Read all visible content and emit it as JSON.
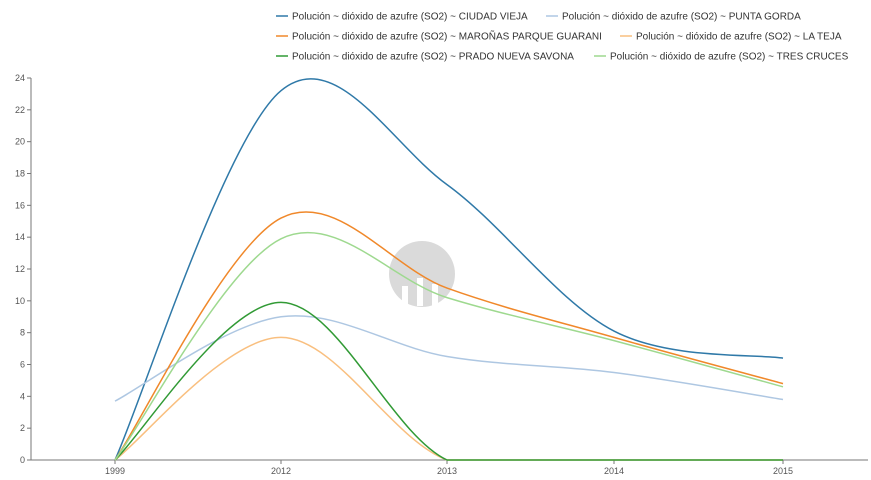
{
  "chart_data": {
    "type": "line",
    "title": "",
    "xlabel": "",
    "ylabel": "",
    "categories": [
      "1999",
      "2012",
      "2013",
      "2014",
      "2015"
    ],
    "ylim": [
      0,
      24
    ],
    "yticks": [
      0,
      2,
      4,
      6,
      8,
      10,
      12,
      14,
      16,
      18,
      20,
      22,
      24
    ],
    "grid": false,
    "legend_position": "top",
    "watermark": "logo",
    "series": [
      {
        "name": "Polución ~ dióxido de azufre (SO2) ~ CIUDAD VIEJA",
        "color": "#2f79a8",
        "x": [
          "1999",
          "2012",
          "2013",
          "2014",
          "2015"
        ],
        "values": [
          0,
          23.2,
          17.3,
          8.1,
          6.4
        ]
      },
      {
        "name": "Polución ~ dióxido de azufre (SO2) ~ PUNTA GORDA",
        "color": "#aec7e2",
        "x": [
          "1999",
          "2012",
          "2013",
          "2014",
          "2015"
        ],
        "values": [
          3.7,
          9.0,
          6.5,
          5.5,
          3.8
        ]
      },
      {
        "name": "Polución ~ dióxido de azufre (SO2) ~ MAROÑAS PARQUE GUARANI",
        "color": "#f0882a",
        "x": [
          "1999",
          "2012",
          "2013",
          "2014",
          "2015"
        ],
        "values": [
          0,
          15.2,
          10.8,
          7.7,
          4.8
        ]
      },
      {
        "name": "Polución ~ dióxido de azufre (SO2) ~ LA TEJA",
        "color": "#f9bf7f",
        "x": [
          "1999",
          "2012",
          "2013",
          "2014",
          "2015"
        ],
        "values": [
          0,
          7.7,
          0,
          0,
          0
        ]
      },
      {
        "name": "Polución ~ dióxido de azufre (SO2) ~ PRADO NUEVA SAVONA",
        "color": "#319a35",
        "x": [
          "1999",
          "2012",
          "2013",
          "2014",
          "2015"
        ],
        "values": [
          0,
          9.9,
          0,
          0,
          0
        ]
      },
      {
        "name": "Polución ~ dióxido de azufre (SO2) ~ TRES CRUCES",
        "color": "#9ed98f",
        "x": [
          "1999",
          "2012",
          "2013",
          "2014",
          "2015"
        ],
        "values": [
          0,
          13.9,
          10.2,
          7.5,
          4.6
        ]
      }
    ]
  }
}
